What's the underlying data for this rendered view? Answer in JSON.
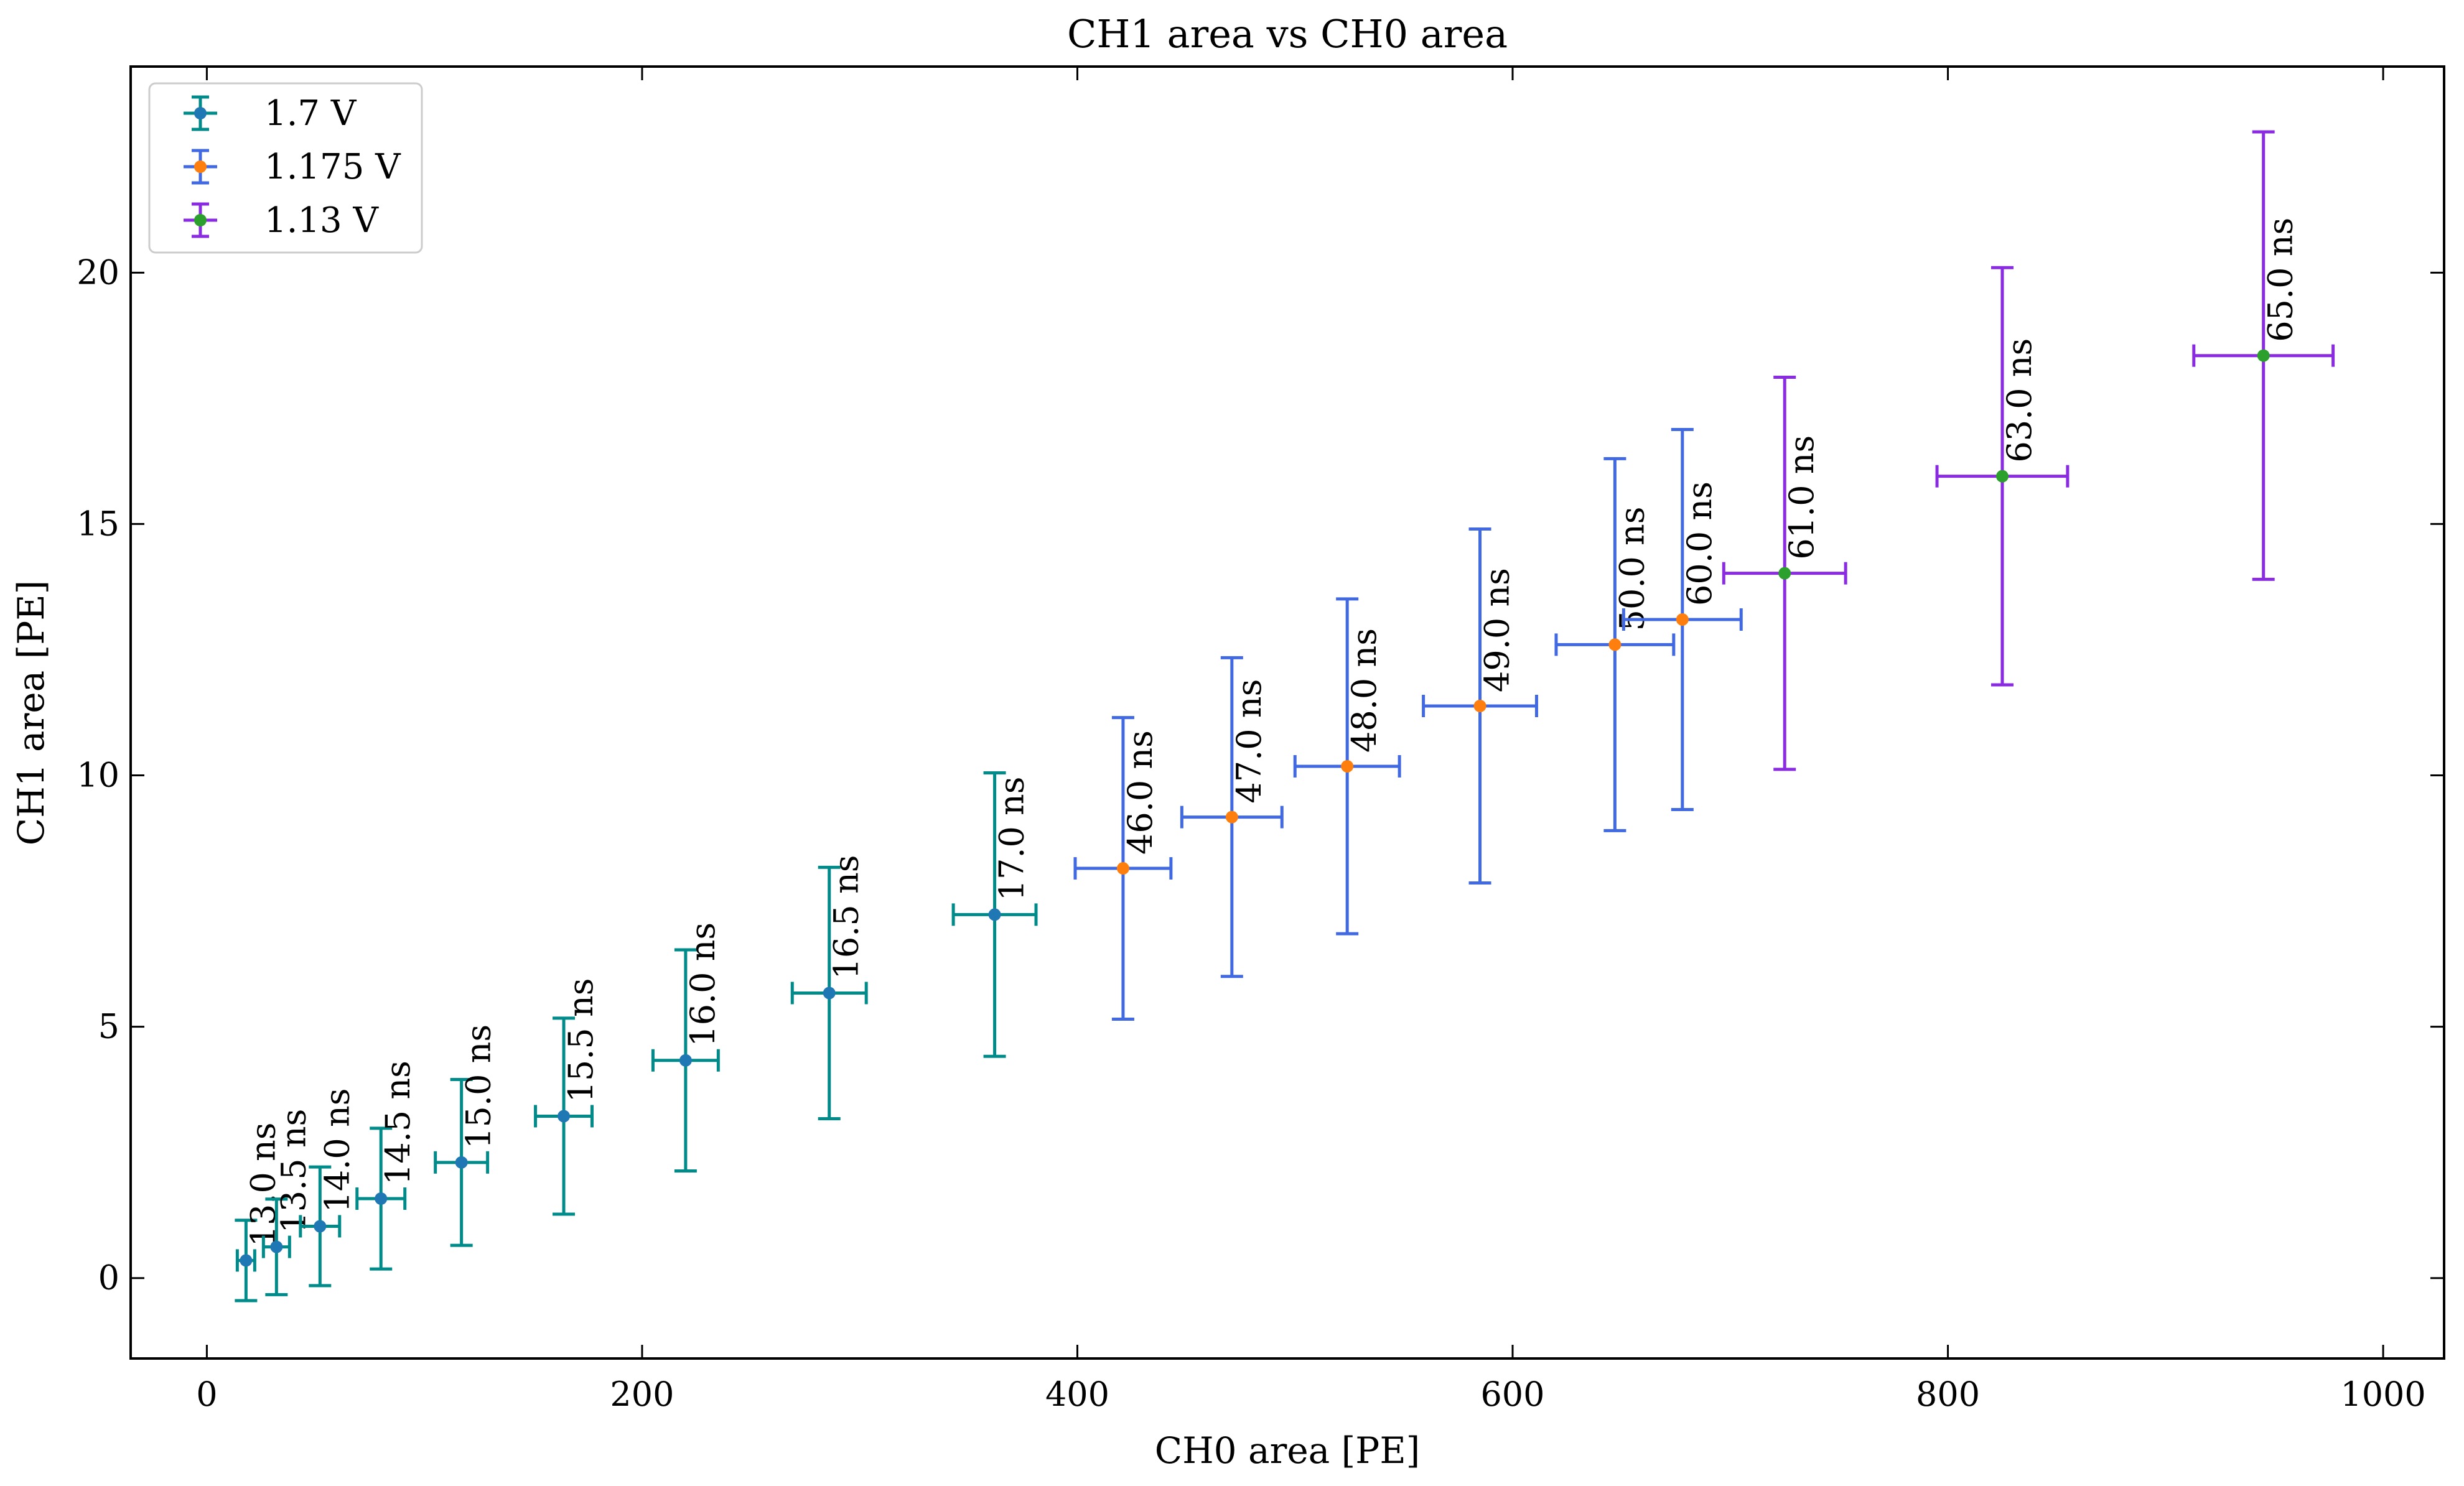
{
  "chart_data": {
    "type": "scatter",
    "title": "CH1 area vs CH0 area",
    "xlabel": "CH0 area [PE]",
    "ylabel": "CH1 area [PE]",
    "xlim": [
      -35,
      1028
    ],
    "ylim": [
      -1.6,
      24.1
    ],
    "xticks": [
      0,
      200,
      400,
      600,
      800,
      1000
    ],
    "yticks": [
      0,
      5,
      10,
      15,
      20
    ],
    "grid": false,
    "legend_position": "top-left",
    "series": [
      {
        "name": "1.7 V",
        "bar_color": "#008b8b",
        "marker_color": "#1f77b4",
        "points": [
          {
            "x": 18,
            "y": 0.35,
            "xerr": 4,
            "yerr": 0.8,
            "label": "13.0 ns"
          },
          {
            "x": 32,
            "y": 0.62,
            "xerr": 6,
            "yerr": 0.95,
            "label": "13.5 ns"
          },
          {
            "x": 52,
            "y": 1.03,
            "xerr": 9,
            "yerr": 1.18,
            "label": "14.0 ns"
          },
          {
            "x": 80,
            "y": 1.58,
            "xerr": 11,
            "yerr": 1.4,
            "label": "14.5 ns"
          },
          {
            "x": 117,
            "y": 2.3,
            "xerr": 12,
            "yerr": 1.65,
            "label": "15.0 ns"
          },
          {
            "x": 164,
            "y": 3.22,
            "xerr": 13,
            "yerr": 1.95,
            "label": "15.5 ns"
          },
          {
            "x": 220,
            "y": 4.33,
            "xerr": 15,
            "yerr": 2.2,
            "label": "16.0 ns"
          },
          {
            "x": 286,
            "y": 5.67,
            "xerr": 17,
            "yerr": 2.5,
            "label": "16.5 ns"
          },
          {
            "x": 362,
            "y": 7.23,
            "xerr": 19,
            "yerr": 2.82,
            "label": "17.0 ns"
          }
        ]
      },
      {
        "name": "1.175 V",
        "bar_color": "#4169e1",
        "marker_color": "#ff7f0e",
        "points": [
          {
            "x": 421,
            "y": 8.15,
            "xerr": 22,
            "yerr": 3.0,
            "label": "46.0 ns"
          },
          {
            "x": 471,
            "y": 9.17,
            "xerr": 23,
            "yerr": 3.17,
            "label": "47.0 ns"
          },
          {
            "x": 524,
            "y": 10.18,
            "xerr": 24,
            "yerr": 3.33,
            "label": "48.0 ns"
          },
          {
            "x": 585,
            "y": 11.38,
            "xerr": 26,
            "yerr": 3.52,
            "label": "49.0 ns"
          },
          {
            "x": 647,
            "y": 12.6,
            "xerr": 27,
            "yerr": 3.7,
            "label": "50.0 ns"
          },
          {
            "x": 678,
            "y": 13.1,
            "xerr": 27,
            "yerr": 3.78,
            "label": "60.0 ns"
          }
        ]
      },
      {
        "name": "1.13 V",
        "bar_color": "#8a2be2",
        "marker_color": "#2ca02c",
        "points": [
          {
            "x": 725,
            "y": 14.02,
            "xerr": 28,
            "yerr": 3.9,
            "label": "61.0 ns"
          },
          {
            "x": 825,
            "y": 15.95,
            "xerr": 30,
            "yerr": 4.15,
            "label": "63.0 ns"
          },
          {
            "x": 945,
            "y": 18.35,
            "xerr": 32,
            "yerr": 4.45,
            "label": "65.0 ns"
          }
        ]
      }
    ]
  }
}
